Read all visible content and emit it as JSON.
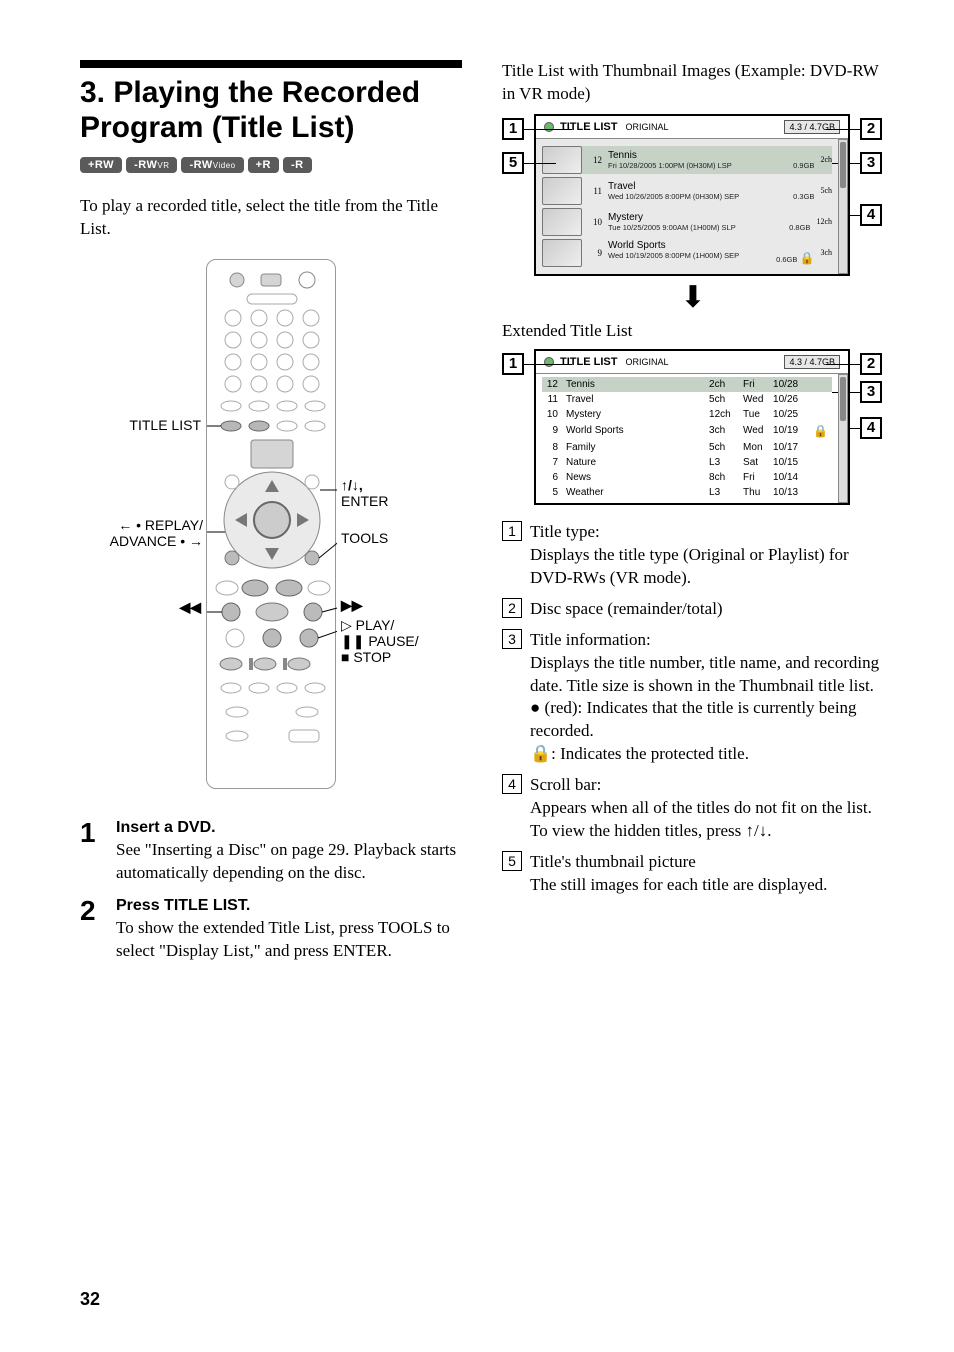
{
  "left": {
    "mainTitle": "3. Playing the Recorded Program (Title List)",
    "badges": [
      "+RW",
      "-RWVR",
      "-RWVideo",
      "+R",
      "-R"
    ],
    "intro": "To play a recorded title, select the title from the Title List.",
    "remote": {
      "labelTitleList": "TITLE LIST",
      "labelReplay1": "← • REPLAY/",
      "labelReplay2": "ADVANCE • →",
      "labelRew": "◀◀",
      "labelArrowEnter1": "↑/↓,",
      "labelArrowEnter2": "ENTER",
      "labelTools": "TOOLS",
      "labelFF": "▶▶",
      "labelPlay1": "▷ PLAY/",
      "labelPlay2": "❚❚ PAUSE/",
      "labelPlay3": "■ STOP"
    },
    "steps": [
      {
        "num": "1",
        "head": "Insert a DVD.",
        "text": "See \"Inserting a Disc\" on page 29. Playback starts automatically depending on the disc."
      },
      {
        "num": "2",
        "head": "Press TITLE LIST.",
        "text": "To show the extended Title List, press TOOLS to select \"Display List,\" and press ENTER."
      }
    ],
    "pageNum": "32"
  },
  "right": {
    "caption1": "Title List with Thumbnail Images (Example: DVD-RW in VR mode)",
    "caption2": "Extended Title List",
    "thumbList": {
      "headerTitle": "TITLE LIST",
      "headerSub": "ORIGINAL",
      "space": "4.3 / 4.7GB",
      "rows": [
        {
          "n": "12",
          "name": "Tennis",
          "meta": "Fri 10/28/2005 1:00PM (0H30M) LSP",
          "ch": "2ch",
          "size": "0.9GB",
          "sel": true
        },
        {
          "n": "11",
          "name": "Travel",
          "meta": "Wed 10/26/2005 8:00PM (0H30M) SEP",
          "ch": "5ch",
          "size": "0.3GB"
        },
        {
          "n": "10",
          "name": "Mystery",
          "meta": "Tue 10/25/2005 9:00AM (1H00M) SLP",
          "ch": "12ch",
          "size": "0.8GB"
        },
        {
          "n": "9",
          "name": "World Sports",
          "meta": "Wed 10/19/2005 8:00PM (1H00M) SEP",
          "ch": "3ch",
          "size": "0.6GB",
          "lock": true
        }
      ]
    },
    "extList": {
      "headerTitle": "TITLE LIST",
      "headerSub": "ORIGINAL",
      "space": "4.3 / 4.7GB",
      "rows": [
        {
          "n": "12",
          "name": "Tennis",
          "ch": "2ch",
          "day": "Fri",
          "date": "10/28",
          "sel": true
        },
        {
          "n": "11",
          "name": "Travel",
          "ch": "5ch",
          "day": "Wed",
          "date": "10/26"
        },
        {
          "n": "10",
          "name": "Mystery",
          "ch": "12ch",
          "day": "Tue",
          "date": "10/25"
        },
        {
          "n": "9",
          "name": "World Sports",
          "ch": "3ch",
          "day": "Wed",
          "date": "10/19",
          "lock": true
        },
        {
          "n": "8",
          "name": "Family",
          "ch": "5ch",
          "day": "Mon",
          "date": "10/17"
        },
        {
          "n": "7",
          "name": "Nature",
          "ch": "L3",
          "day": "Sat",
          "date": "10/15"
        },
        {
          "n": "6",
          "name": "News",
          "ch": "8ch",
          "day": "Fri",
          "date": "10/14"
        },
        {
          "n": "5",
          "name": "Weather",
          "ch": "L3",
          "day": "Thu",
          "date": "10/13"
        }
      ]
    },
    "legend": [
      {
        "n": "1",
        "title": "Title type:",
        "body": "Displays the title type (Original or Playlist) for DVD-RWs (VR mode)."
      },
      {
        "n": "2",
        "title": "Disc space (remainder/total)",
        "body": ""
      },
      {
        "n": "3",
        "title": "Title information:",
        "body": "Displays the title number, title name, and recording date. Title size is shown in the Thumbnail title list.",
        "extra": [
          {
            "sym": "●",
            "note": " (red): Indicates that the title is currently being recorded."
          },
          {
            "sym": "🔒",
            "note": ": Indicates the protected title."
          }
        ]
      },
      {
        "n": "4",
        "title": "Scroll bar:",
        "body": "Appears when all of the titles do not fit on the list. To view the hidden titles, press ↑/↓."
      },
      {
        "n": "5",
        "title": "Title's thumbnail picture",
        "body": "The still images for each title are displayed."
      }
    ]
  }
}
